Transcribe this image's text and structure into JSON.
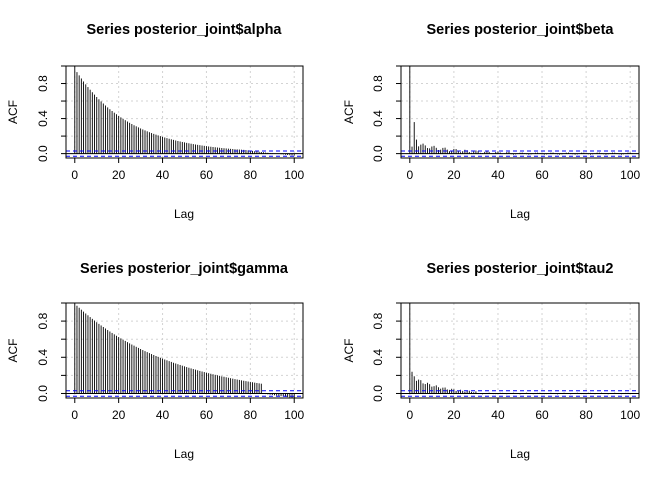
{
  "chart_data": [
    {
      "type": "bar",
      "title": "Series  posterior_joint$alpha",
      "xlabel": "Lag",
      "ylabel": "ACF",
      "xlim": [
        -4,
        104
      ],
      "ylim": [
        -0.05,
        1.0
      ],
      "xticks": [
        "0",
        "20",
        "40",
        "60",
        "80",
        "100"
      ],
      "yticks": [
        "0.0",
        "0.4",
        "0.8"
      ],
      "grid": true,
      "ci": 0.03,
      "colors": {
        "bars": "#000000",
        "ci": "#0000ff",
        "grid": "#d3d3d3"
      },
      "decay": {
        "kind": "alpha",
        "rate": 0.0405,
        "shape": "exp",
        "start": 1.0,
        "lag1": 0.93,
        "tail_neg": -0.03
      }
    },
    {
      "type": "bar",
      "title": "Series  posterior_joint$beta",
      "xlabel": "Lag",
      "ylabel": "ACF",
      "xlim": [
        -4,
        104
      ],
      "ylim": [
        -0.05,
        1.0
      ],
      "xticks": [
        "0",
        "20",
        "40",
        "60",
        "80",
        "100"
      ],
      "yticks": [
        "0.0",
        "0.4",
        "0.8"
      ],
      "grid": true,
      "ci": 0.03,
      "colors": {
        "bars": "#000000",
        "ci": "#0000ff",
        "grid": "#d3d3d3"
      },
      "decay": {
        "kind": "beta",
        "lag1": 0.36,
        "lag2": 0.16,
        "rate": 0.06,
        "floor": 0.04
      }
    },
    {
      "type": "bar",
      "title": "Series  posterior_joint$gamma",
      "xlabel": "Lag",
      "ylabel": "ACF",
      "xlim": [
        -4,
        104
      ],
      "ylim": [
        -0.05,
        1.0
      ],
      "xticks": [
        "0",
        "20",
        "40",
        "60",
        "80",
        "100"
      ],
      "yticks": [
        "0.0",
        "0.4",
        "0.8"
      ],
      "grid": true,
      "ci": 0.03,
      "colors": {
        "bars": "#000000",
        "ci": "#0000ff",
        "grid": "#d3d3d3"
      },
      "decay": {
        "kind": "gamma",
        "rate": 0.0225,
        "lag1": 0.97,
        "tail_neg": -0.05
      }
    },
    {
      "type": "bar",
      "title": "Series  posterior_joint$tau2",
      "xlabel": "Lag",
      "ylabel": "ACF",
      "xlim": [
        -4,
        104
      ],
      "ylim": [
        -0.05,
        1.0
      ],
      "xticks": [
        "0",
        "20",
        "40",
        "60",
        "80",
        "100"
      ],
      "yticks": [
        "0.0",
        "0.4",
        "0.8"
      ],
      "grid": true,
      "ci": 0.03,
      "colors": {
        "bars": "#000000",
        "ci": "#0000ff",
        "grid": "#d3d3d3"
      },
      "decay": {
        "kind": "tau2",
        "lag1": 0.24,
        "rate": 0.08,
        "floor": 0.0
      }
    }
  ]
}
